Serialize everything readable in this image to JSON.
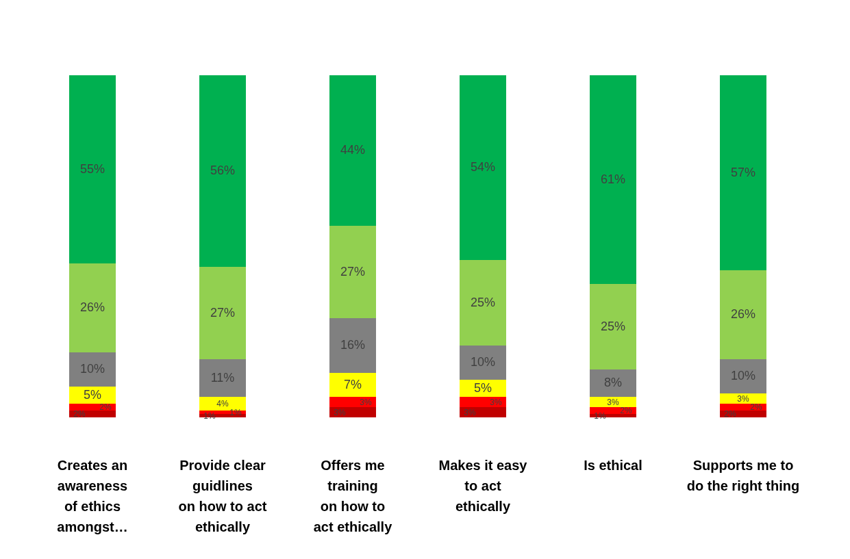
{
  "chart_data": {
    "type": "bar",
    "stacked": true,
    "categories": [
      "Creates an\nawareness\nof ethics\namongst…",
      "Provide clear\nguidlines\non how to act\nethically",
      "Offers me\ntraining\non how to\nact ethically",
      "Makes it easy\nto act\nethically",
      "Is ethical",
      "Supports me to\ndo the right thing"
    ],
    "series": [
      {
        "color": "#c00000",
        "values": [
          2,
          1,
          3,
          3,
          1,
          2
        ],
        "value_labels": [
          "2%",
          "1%",
          "3%",
          "3%",
          "1%",
          "2%"
        ]
      },
      {
        "color": "#ff0000",
        "values": [
          2,
          1,
          3,
          3,
          2,
          2
        ],
        "value_labels": [
          "2%",
          "1%",
          "3%",
          "3%",
          "2%",
          "2%"
        ]
      },
      {
        "color": "#ffff00",
        "values": [
          5,
          4,
          7,
          5,
          3,
          3
        ],
        "value_labels": [
          "5%",
          "4%",
          "7%",
          "5%",
          "3%",
          "3%"
        ]
      },
      {
        "color": "#808080",
        "values": [
          10,
          11,
          16,
          10,
          8,
          10
        ],
        "value_labels": [
          "10%",
          "11%",
          "16%",
          "10%",
          "8%",
          "10%"
        ]
      },
      {
        "color": "#92d050",
        "values": [
          26,
          27,
          27,
          25,
          25,
          26
        ],
        "value_labels": [
          "26%",
          "27%",
          "27%",
          "25%",
          "25%",
          "26%"
        ]
      },
      {
        "color": "#00b050",
        "values": [
          55,
          56,
          44,
          54,
          61,
          57
        ],
        "value_labels": [
          "55%",
          "56%",
          "44%",
          "54%",
          "61%",
          "57%"
        ]
      }
    ],
    "legend": false,
    "grid": false,
    "tick_labels": "x"
  }
}
